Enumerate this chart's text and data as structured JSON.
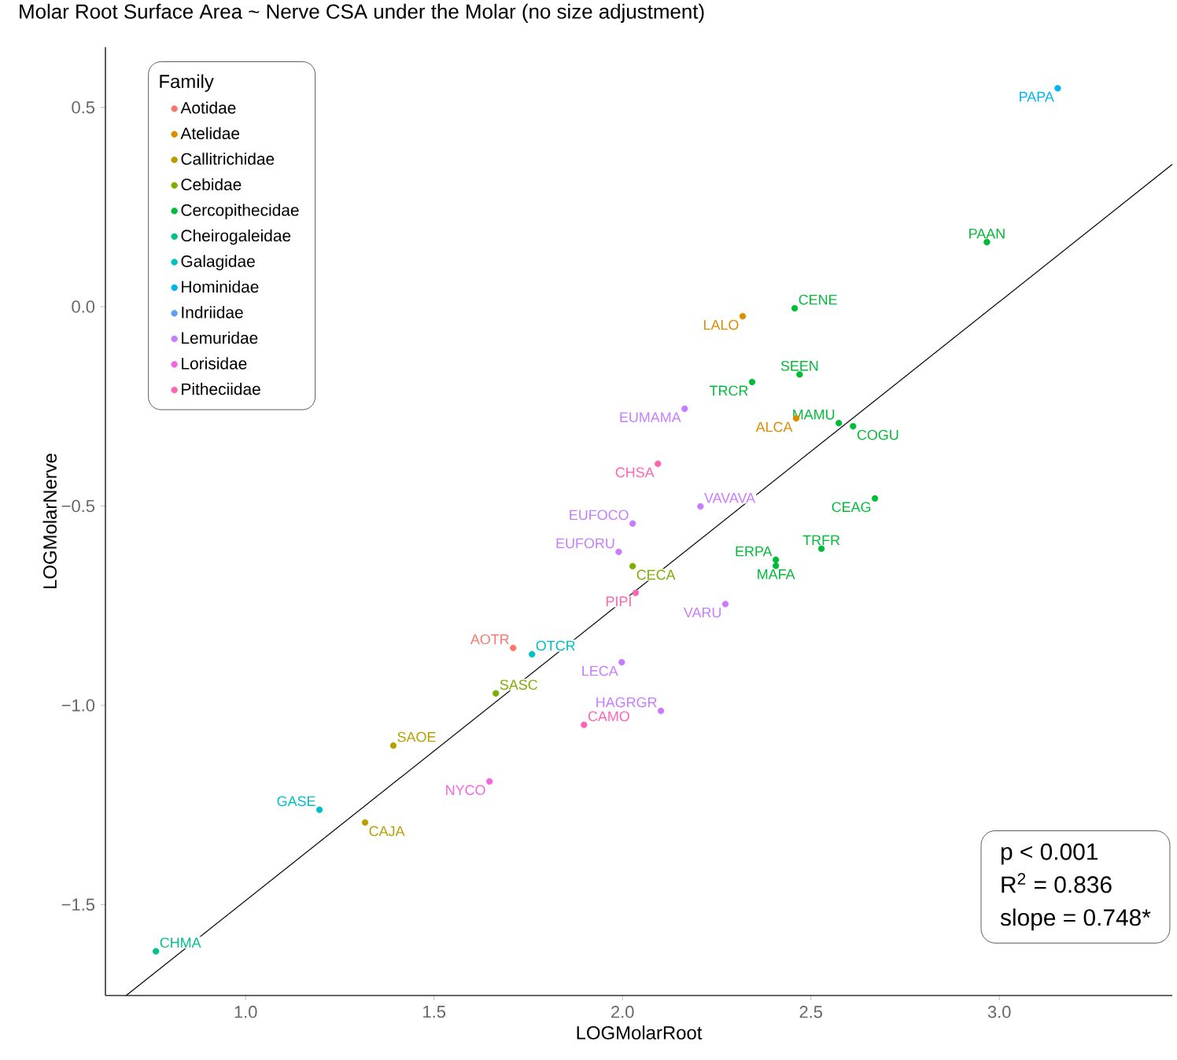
{
  "chart_data": {
    "type": "scatter",
    "title": "Molar Root Surface Area ~ Nerve CSA under the Molar (no size adjustment)",
    "xlabel": "LOGMolarRoot",
    "ylabel": "LOGMolarNerve",
    "legend_title": "Family",
    "legend": "top left",
    "xlim": [
      0.628,
      3.459
    ],
    "ylim": [
      -1.728,
      0.651
    ],
    "xticks": [
      {
        "value": 1,
        "label": "1.0"
      },
      {
        "value": 1.5,
        "label": "1.5"
      },
      {
        "value": 2,
        "label": "2.0"
      },
      {
        "value": 2.5,
        "label": "2.5"
      },
      {
        "value": 3,
        "label": "3.0"
      }
    ],
    "yticks": [
      {
        "value": 0.5,
        "label": "0.5"
      },
      {
        "value": 0,
        "label": "0.0"
      },
      {
        "value": -0.5,
        "label": "−0.5"
      },
      {
        "value": -1,
        "label": "−1.0"
      },
      {
        "value": -1.5,
        "label": "−1.5"
      }
    ],
    "series": [
      {
        "name": "Aotidae",
        "marker": "circle",
        "color": "#f8766d",
        "x": [
          1.71
        ],
        "values": [
          -0.856
        ]
      },
      {
        "name": "Atelidae",
        "marker": "circle",
        "color": "#de8c00",
        "x": [
          2.319,
          2.461
        ],
        "values": [
          -0.024,
          -0.28
        ]
      },
      {
        "name": "Callitrichidae",
        "marker": "circle",
        "color": "#b79f00",
        "x": [
          1.392,
          1.317
        ],
        "values": [
          -1.101,
          -1.294
        ]
      },
      {
        "name": "Cebidae",
        "marker": "circle",
        "color": "#7cae00",
        "x": [
          2.027,
          1.664
        ],
        "values": [
          -0.651,
          -0.97
        ]
      },
      {
        "name": "Cercopithecidae",
        "marker": "circle",
        "color": "#00ba38",
        "x": [
          2.967,
          2.457,
          2.47,
          2.344,
          2.574,
          2.612,
          2.67,
          2.528,
          2.407,
          2.407
        ],
        "values": [
          0.162,
          -0.004,
          -0.17,
          -0.189,
          -0.292,
          -0.3,
          -0.481,
          -0.607,
          -0.635,
          -0.65
        ]
      },
      {
        "name": "Cheirogaleidae",
        "marker": "circle",
        "color": "#00c08b",
        "x": [
          0.762
        ],
        "values": [
          -1.617
        ]
      },
      {
        "name": "Galagidae",
        "marker": "circle",
        "color": "#00bfc4",
        "x": [
          1.76,
          1.196
        ],
        "values": [
          -0.872,
          -1.262
        ]
      },
      {
        "name": "Hominidae",
        "marker": "circle",
        "color": "#00b4f0",
        "x": [
          3.155
        ],
        "values": [
          0.548
        ]
      },
      {
        "name": "Indriidae",
        "marker": "circle",
        "color": "#619cff"
      },
      {
        "name": "Lemuridae",
        "marker": "circle",
        "color": "#c77cff",
        "x": [
          2.165,
          2.207,
          2.027,
          1.99,
          2.273,
          1.998,
          2.102
        ],
        "values": [
          -0.256,
          -0.501,
          -0.544,
          -0.615,
          -0.746,
          -0.892,
          -1.014
        ]
      },
      {
        "name": "Lorisidae",
        "marker": "circle",
        "color": "#f564e3",
        "x": [
          1.647
        ],
        "values": [
          -1.191
        ]
      },
      {
        "name": "Pitheciidae",
        "marker": "circle",
        "color": "#ff64b0",
        "x": [
          2.094,
          2.035,
          1.898
        ],
        "values": [
          -0.394,
          -0.718,
          -1.049
        ]
      },
      {
        "type": "line",
        "marker": "none",
        "color": "#000000",
        "x": [
          0.683,
          3.459
        ],
        "values": [
          -1.728,
          0.357
        ]
      }
    ],
    "annotations": [
      {
        "text": "PAPA",
        "x": 3.155,
        "y": 0.548
      },
      {
        "text": "PAAN",
        "x": 2.967,
        "y": 0.162
      },
      {
        "text": "CENE",
        "x": 2.457,
        "y": -0.004
      },
      {
        "text": "LALO",
        "x": 2.319,
        "y": -0.024
      },
      {
        "text": "SEEN",
        "x": 2.47,
        "y": -0.17
      },
      {
        "text": "TRCR",
        "x": 2.344,
        "y": -0.189
      },
      {
        "text": "EUMAMA",
        "x": 2.165,
        "y": -0.256
      },
      {
        "text": "ALCA",
        "x": 2.461,
        "y": -0.28
      },
      {
        "text": "MAMU",
        "x": 2.574,
        "y": -0.292
      },
      {
        "text": "COGU",
        "x": 2.612,
        "y": -0.3
      },
      {
        "text": "CHSA",
        "x": 2.094,
        "y": -0.394
      },
      {
        "text": "VAVAVA",
        "x": 2.207,
        "y": -0.501
      },
      {
        "text": "EUFOCO",
        "x": 2.027,
        "y": -0.544
      },
      {
        "text": "CEAG",
        "x": 2.67,
        "y": -0.481
      },
      {
        "text": "EUFORU",
        "x": 1.99,
        "y": -0.615
      },
      {
        "text": "TRFR",
        "x": 2.528,
        "y": -0.607
      },
      {
        "text": "ERPA",
        "x": 2.407,
        "y": -0.635
      },
      {
        "text": "MAFA",
        "x": 2.407,
        "y": -0.65
      },
      {
        "text": "CECA",
        "x": 2.027,
        "y": -0.651
      },
      {
        "text": "PIPI",
        "x": 2.035,
        "y": -0.718
      },
      {
        "text": "VARU",
        "x": 2.273,
        "y": -0.746
      },
      {
        "text": "AOTR",
        "x": 1.71,
        "y": -0.856
      },
      {
        "text": "OTCR",
        "x": 1.76,
        "y": -0.872
      },
      {
        "text": "SASC",
        "x": 1.664,
        "y": -0.97
      },
      {
        "text": "LECA",
        "x": 1.998,
        "y": -0.892
      },
      {
        "text": "CAMO",
        "x": 1.898,
        "y": -1.049
      },
      {
        "text": "HAGRGR",
        "x": 2.102,
        "y": -1.014
      },
      {
        "text": "SAOE",
        "x": 1.392,
        "y": -1.101
      },
      {
        "text": "NYCO",
        "x": 1.647,
        "y": -1.191
      },
      {
        "text": "GASE",
        "x": 1.196,
        "y": -1.262
      },
      {
        "text": "CAJA",
        "x": 1.317,
        "y": -1.294
      },
      {
        "text": "CHMA",
        "x": 0.762,
        "y": -1.617
      },
      "p < 0.001",
      "R$^{2}$ = 0.836",
      "slope = 0.748*"
    ]
  }
}
